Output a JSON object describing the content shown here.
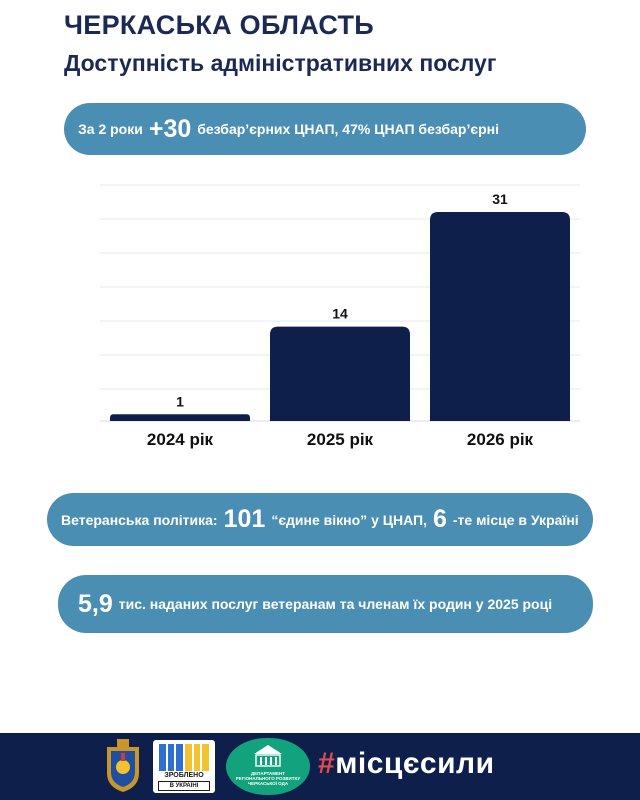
{
  "header": {
    "title": "ЧЕРКАСЬКА ОБЛАСТЬ",
    "subtitle": "Доступність адміністративних послуг"
  },
  "highlight1": {
    "prefix": "За 2 роки",
    "big": "+30",
    "suffix": "безбар’єрних ЦНАП, 47% ЦНАП безбар’єрні"
  },
  "chart_data": {
    "type": "bar",
    "categories": [
      "2024 рік",
      "2025 рік",
      "2026 рік"
    ],
    "values": [
      1,
      14,
      31
    ],
    "data_labels": [
      "1",
      "14",
      "31"
    ],
    "ylim": [
      0,
      35
    ],
    "grid": true,
    "legend": "none",
    "bar_color": "#0f1f4c"
  },
  "highlight2": {
    "prefix": "Ветеранська політика:",
    "big1": "101",
    "middle": "“єдине вікно” у ЦНАП,",
    "big2": "6",
    "suffix": "-те місце в Україні"
  },
  "highlight3": {
    "big": "5,9",
    "suffix": "тис.  наданих послуг ветеранам та членам їх родин у 2025 році"
  },
  "footer": {
    "made_in": "ЗРОБЛЕНО",
    "made_in_2": "В УКРАЇНІ",
    "dept_text": "ДЕПАРТАМЕНТ РЕГІОНАЛЬНОГО РОЗВИТКУ ЧЕРКАСЬКОЇ ОДА",
    "hashtag_symbol": "#",
    "hashtag_text": "місцєсили"
  },
  "colors": {
    "navy": "#0f1f4c",
    "pill": "#4a8fb3",
    "dept_green": "#12a37d",
    "hashtag_red": "#e24a52"
  }
}
